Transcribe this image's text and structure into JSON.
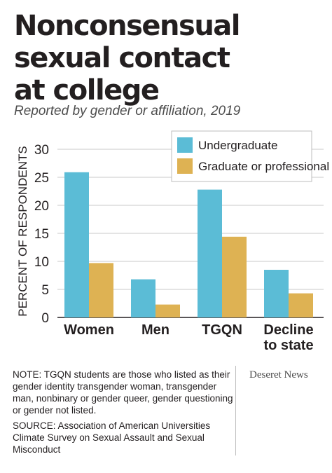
{
  "header": {
    "title_lines": [
      "Nonconsensual",
      "sexual contact",
      "at college"
    ],
    "subtitle": "Reported by gender or affiliation, 2019"
  },
  "chart_data": {
    "type": "bar",
    "categories": [
      [
        "Women"
      ],
      [
        "Men"
      ],
      [
        "TGQN"
      ],
      [
        "Decline",
        "to state"
      ]
    ],
    "series": [
      {
        "name": "Undergraduate",
        "color": "#5bbcd6",
        "values": [
          25.9,
          6.8,
          22.8,
          8.5
        ]
      },
      {
        "name": "Graduate or professional",
        "color": "#deb253",
        "values": [
          9.7,
          2.3,
          14.4,
          4.3
        ]
      }
    ],
    "ylabel": "PERCENT OF RESPONDENTS",
    "xlabel": "",
    "ylim": [
      0,
      30
    ],
    "yticks": [
      0,
      5,
      10,
      15,
      20,
      25,
      30
    ],
    "grid": true,
    "legend": "top-right"
  },
  "footer": {
    "note": "NOTE: TGQN students are those who listed as their gender identity transgender woman, transgender man, nonbinary or gender queer, gender questioning or gender not listed.",
    "source": "SOURCE: Association of American Universities Climate Survey on Sexual Assault and Sexual Misconduct",
    "brand": "Deseret News"
  }
}
